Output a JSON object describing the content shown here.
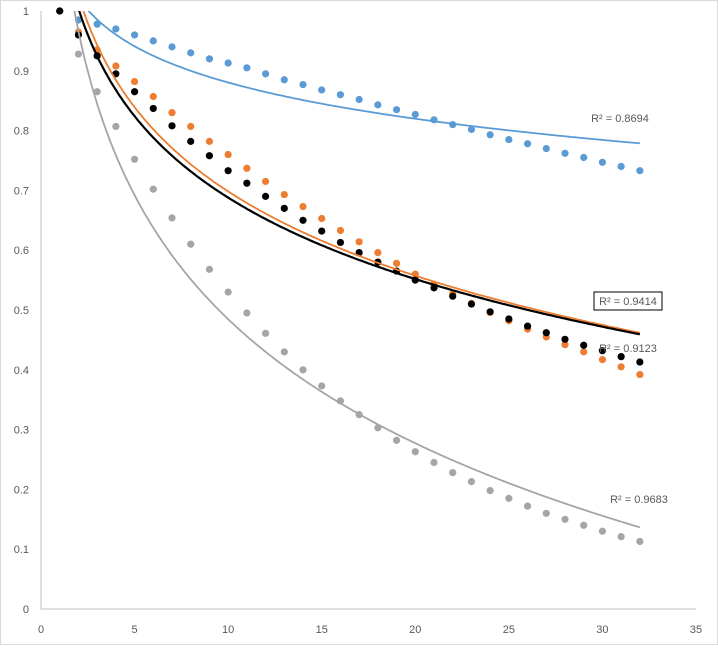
{
  "chart_data": {
    "type": "scatter",
    "title": "",
    "xlabel": "",
    "ylabel": "",
    "xlim": [
      0,
      35
    ],
    "ylim": [
      0,
      1
    ],
    "x_ticks": [
      "0",
      "5",
      "10",
      "15",
      "20",
      "25",
      "30",
      "35"
    ],
    "y_ticks": [
      "0",
      "0.1",
      "0.2",
      "0.3",
      "0.4",
      "0.5",
      "0.6",
      "0.7",
      "0.8",
      "0.9",
      "1"
    ],
    "grid": false,
    "trendline": "logarithmic",
    "x": [
      1,
      2,
      3,
      4,
      5,
      6,
      7,
      8,
      9,
      10,
      11,
      12,
      13,
      14,
      15,
      16,
      17,
      18,
      19,
      20,
      21,
      22,
      23,
      24,
      25,
      26,
      27,
      28,
      29,
      30,
      31,
      32
    ],
    "series": [
      {
        "name": "blue",
        "color": "#5b9bd5",
        "r2_label": "R² = 0.8694",
        "boxed": false,
        "values": [
          1.0,
          0.985,
          0.978,
          0.97,
          0.96,
          0.95,
          0.94,
          0.93,
          0.92,
          0.913,
          0.905,
          0.895,
          0.885,
          0.877,
          0.868,
          0.86,
          0.852,
          0.843,
          0.835,
          0.827,
          0.818,
          0.81,
          0.802,
          0.793,
          0.785,
          0.778,
          0.77,
          0.762,
          0.755,
          0.747,
          0.74,
          0.733
        ]
      },
      {
        "name": "orange",
        "color": "#ed7d31",
        "r2_label": "R² = 0.9123",
        "boxed": false,
        "values": [
          1.0,
          0.965,
          0.935,
          0.908,
          0.882,
          0.857,
          0.83,
          0.807,
          0.782,
          0.76,
          0.737,
          0.715,
          0.693,
          0.673,
          0.653,
          0.633,
          0.614,
          0.596,
          0.578,
          0.56,
          0.543,
          0.527,
          0.511,
          0.496,
          0.482,
          0.468,
          0.455,
          0.442,
          0.43,
          0.417,
          0.405,
          0.392
        ]
      },
      {
        "name": "gray",
        "color": "#a5a5a5",
        "r2_label": "R² = 0.9683",
        "boxed": false,
        "values": [
          1.0,
          0.928,
          0.865,
          0.807,
          0.752,
          0.702,
          0.654,
          0.61,
          0.568,
          0.53,
          0.495,
          0.461,
          0.43,
          0.4,
          0.373,
          0.348,
          0.325,
          0.303,
          0.282,
          0.263,
          0.245,
          0.228,
          0.213,
          0.198,
          0.185,
          0.172,
          0.16,
          0.15,
          0.14,
          0.13,
          0.121,
          0.113
        ]
      },
      {
        "name": "black",
        "color": "#000000",
        "r2_label": "R² = 0.9414",
        "boxed": true,
        "values": [
          1.0,
          0.96,
          0.925,
          0.895,
          0.865,
          0.837,
          0.808,
          0.782,
          0.758,
          0.733,
          0.712,
          0.69,
          0.67,
          0.65,
          0.632,
          0.613,
          0.596,
          0.58,
          0.565,
          0.55,
          0.537,
          0.523,
          0.51,
          0.497,
          0.485,
          0.473,
          0.462,
          0.451,
          0.441,
          0.432,
          0.422,
          0.413
        ]
      }
    ]
  }
}
